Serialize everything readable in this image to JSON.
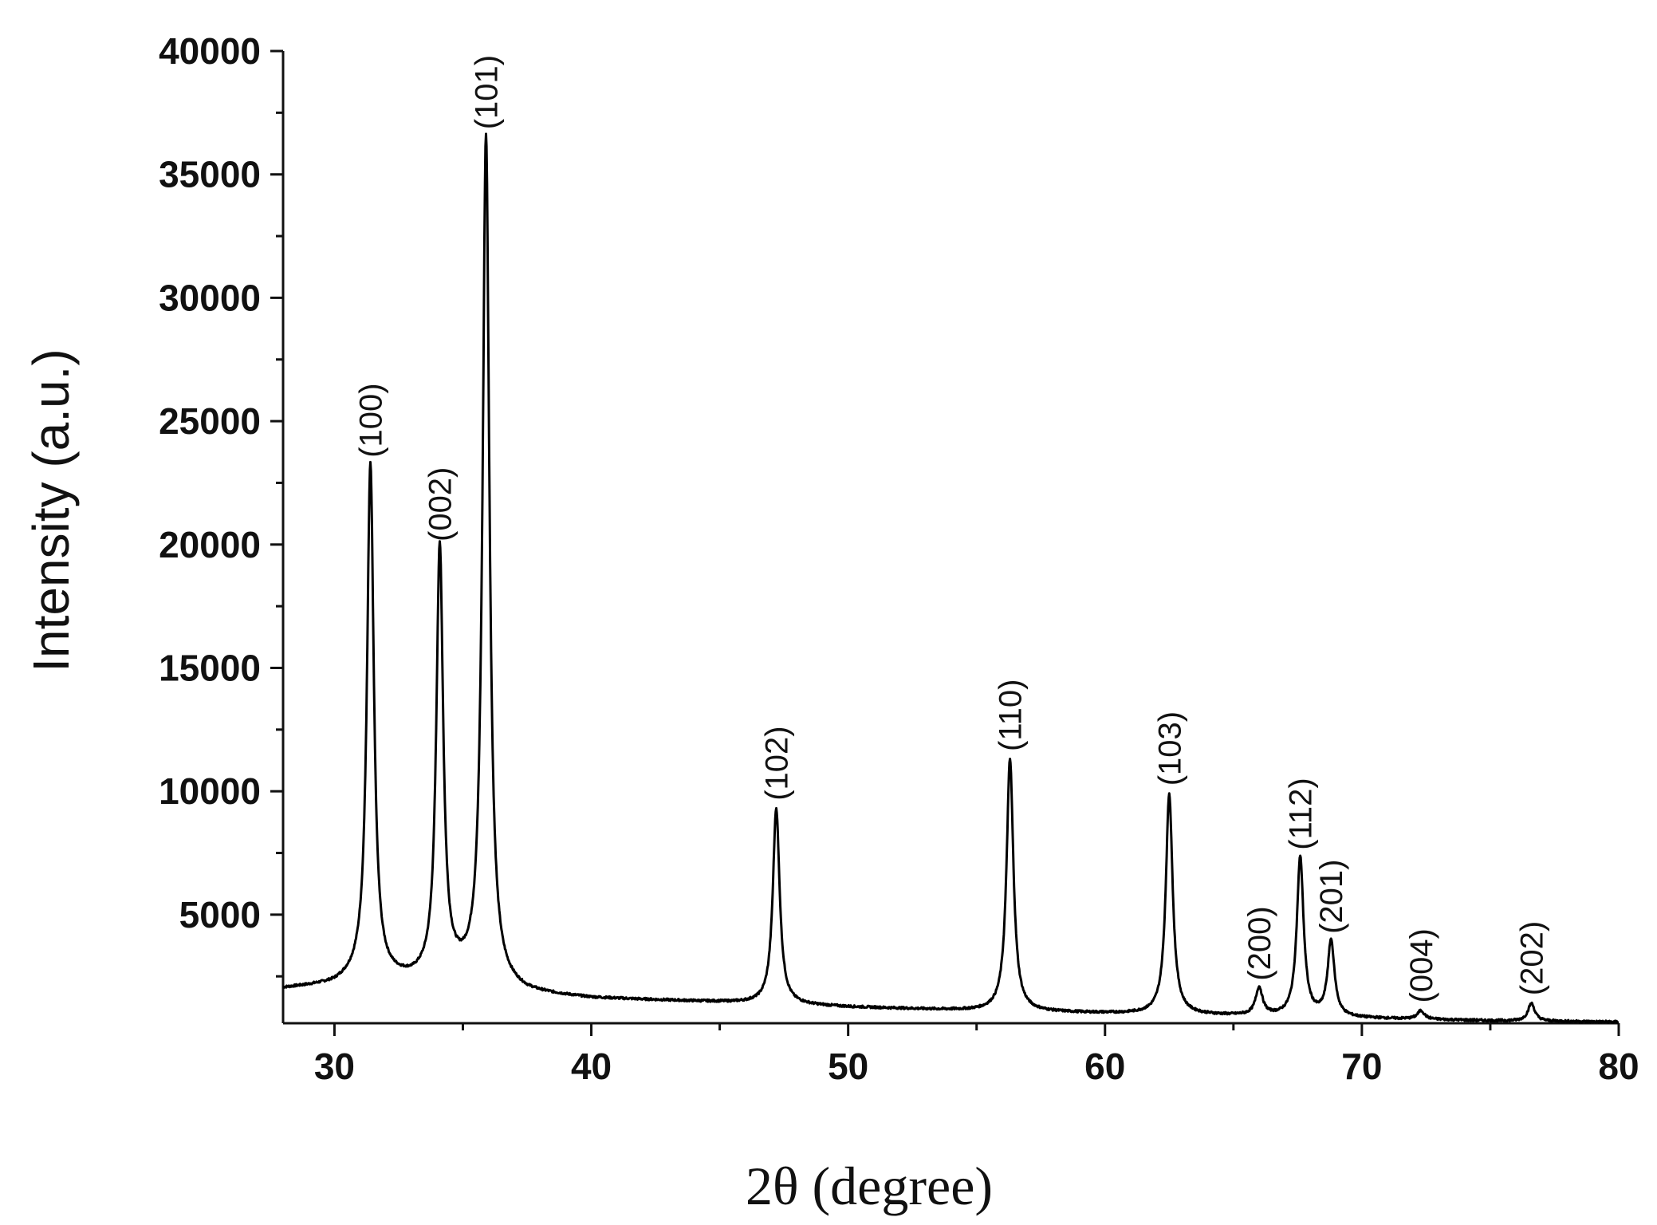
{
  "chart_data": {
    "type": "line",
    "title": "",
    "xlabel": "2θ (degree)",
    "ylabel": "Intensity (a.u.)",
    "xlim": [
      28,
      80
    ],
    "ylim": [
      600,
      40000
    ],
    "xticks": [
      30,
      40,
      50,
      60,
      70,
      80
    ],
    "yticks": [
      5000,
      10000,
      15000,
      20000,
      25000,
      30000,
      35000,
      40000
    ],
    "xtick_labels": [
      "30",
      "40",
      "50",
      "60",
      "70",
      "80"
    ],
    "ytick_labels": [
      "5000",
      "10000",
      "15000",
      "20000",
      "25000",
      "30000",
      "35000",
      "40000"
    ],
    "grid": false,
    "legend": "none",
    "series": [
      {
        "baseline": [
          [
            28.0,
            2000
          ],
          [
            30.0,
            2150
          ],
          [
            31.0,
            2450
          ],
          [
            33.0,
            2300
          ],
          [
            34.8,
            2450
          ],
          [
            37.5,
            1800
          ],
          [
            40.0,
            1600
          ],
          [
            45.0,
            1450
          ],
          [
            47.0,
            1380
          ],
          [
            50.0,
            1250
          ],
          [
            55.0,
            1100
          ],
          [
            60.0,
            1000
          ],
          [
            65.0,
            900
          ],
          [
            70.0,
            800
          ],
          [
            75.0,
            700
          ],
          [
            80.0,
            650
          ]
        ],
        "peaks": [
          {
            "label": "(100)",
            "x": 31.4,
            "y": 23200
          },
          {
            "label": "(002)",
            "x": 34.1,
            "y": 19800
          },
          {
            "label": "(101)",
            "x": 35.9,
            "y": 36500
          },
          {
            "label": "(102)",
            "x": 47.2,
            "y": 9300
          },
          {
            "label": "(110)",
            "x": 56.3,
            "y": 11300
          },
          {
            "label": "(103)",
            "x": 62.5,
            "y": 9900
          },
          {
            "label": "(200)",
            "x": 66.0,
            "y": 2000
          },
          {
            "label": "(112)",
            "x": 67.6,
            "y": 7300
          },
          {
            "label": "(201)",
            "x": 68.8,
            "y": 3900
          },
          {
            "label": "(004)",
            "x": 72.3,
            "y": 1100
          },
          {
            "label": "(202)",
            "x": 76.6,
            "y": 1400
          }
        ]
      }
    ]
  }
}
